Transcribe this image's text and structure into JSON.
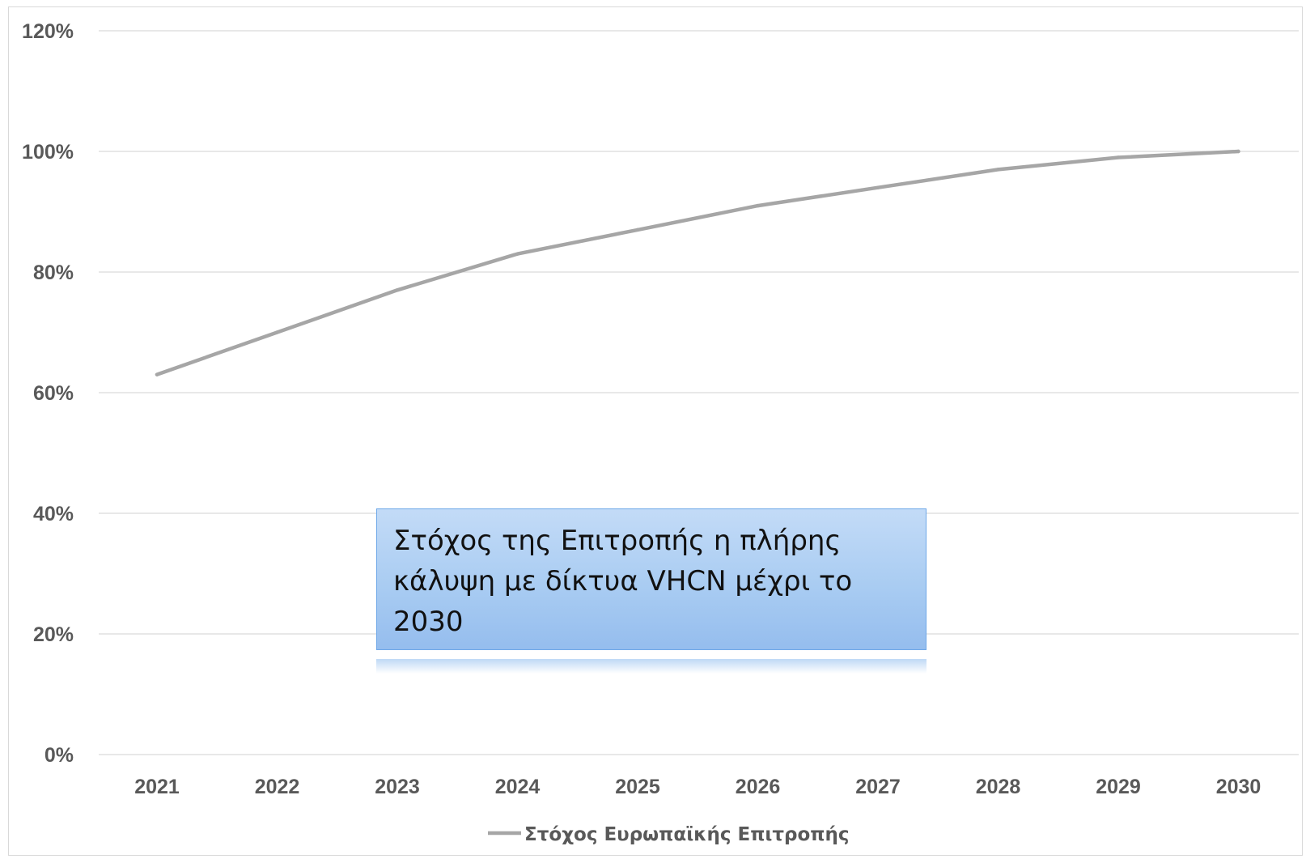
{
  "chart_data": {
    "type": "line",
    "categories": [
      "2021",
      "2022",
      "2023",
      "2024",
      "2025",
      "2026",
      "2027",
      "2028",
      "2029",
      "2030"
    ],
    "series": [
      {
        "name": "Στόχος Ευρωπαϊκής Επιτροπής",
        "values": [
          63,
          70,
          77,
          83,
          87,
          91,
          94,
          97,
          99,
          100
        ],
        "color": "#a6a6a6"
      }
    ],
    "ylim": [
      0,
      120
    ],
    "yticks": [
      0,
      20,
      40,
      60,
      80,
      100,
      120
    ],
    "ytick_labels": [
      "0%",
      "20%",
      "40%",
      "60%",
      "80%",
      "100%",
      "120%"
    ],
    "grid": true,
    "gridline_color": "#d9d9d9",
    "legend_position": "bottom",
    "annotation": "Στόχος της Επιτροπής η πλήρης κάλυψη με δίκτυα VHCN μέχρι το 2030"
  }
}
